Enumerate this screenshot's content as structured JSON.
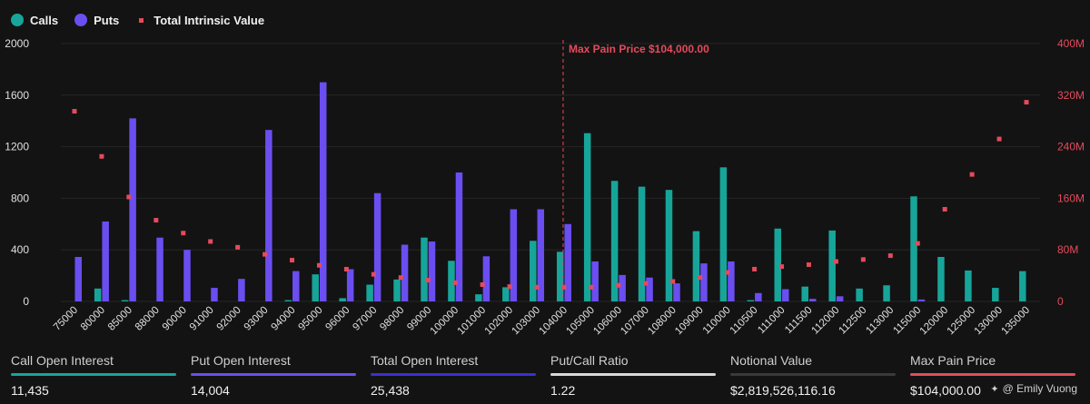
{
  "legend": {
    "calls": "Calls",
    "puts": "Puts",
    "total": "Total Intrinsic Value"
  },
  "colors": {
    "calls": "#17a59a",
    "puts": "#6a4ef0",
    "intrinsic": "#e64a5c",
    "max_pain": "#e64a5c",
    "put_call_bar": "#d8d8d8",
    "total_oi_bar": "#3b2fd6"
  },
  "chart_data": {
    "type": "bar",
    "max_pain_label": "Max Pain Price $104,000.00",
    "max_pain_strike": "104000",
    "categories": [
      "75000",
      "80000",
      "85000",
      "88000",
      "90000",
      "91000",
      "92000",
      "93000",
      "94000",
      "95000",
      "96000",
      "97000",
      "98000",
      "99000",
      "100000",
      "101000",
      "102000",
      "103000",
      "104000",
      "105000",
      "106000",
      "107000",
      "108000",
      "109000",
      "110000",
      "110500",
      "111000",
      "111500",
      "112000",
      "112500",
      "113000",
      "115000",
      "120000",
      "125000",
      "130000",
      "135000"
    ],
    "series": [
      {
        "name": "Calls",
        "values": [
          0,
          100,
          10,
          0,
          0,
          0,
          0,
          0,
          10,
          210,
          25,
          130,
          170,
          495,
          315,
          55,
          110,
          470,
          385,
          1305,
          935,
          890,
          865,
          545,
          1040,
          10,
          565,
          115,
          550,
          100,
          125,
          815,
          345,
          240,
          105,
          235
        ]
      },
      {
        "name": "Puts",
        "values": [
          345,
          620,
          1420,
          495,
          400,
          105,
          175,
          1330,
          235,
          1700,
          250,
          840,
          440,
          465,
          1000,
          350,
          715,
          715,
          600,
          310,
          205,
          185,
          140,
          295,
          310,
          65,
          95,
          20,
          40,
          0,
          0,
          15,
          0,
          0,
          0,
          0
        ]
      },
      {
        "name": "Total Intrinsic Value",
        "values": [
          295000000,
          225000000,
          162000000,
          126000000,
          106000000,
          93000000,
          84000000,
          73000000,
          64000000,
          56000000,
          50000000,
          42000000,
          37000000,
          33000000,
          29000000,
          26000000,
          23000000,
          22000000,
          22000000,
          22000000,
          25000000,
          28000000,
          31000000,
          37000000,
          45000000,
          50000000,
          54000000,
          57000000,
          62000000,
          65000000,
          71000000,
          90000000,
          143000000,
          197000000,
          252000000,
          309000000
        ]
      }
    ],
    "y_left": {
      "ticks": [
        "0",
        "400",
        "800",
        "1200",
        "1600",
        "2000"
      ],
      "range": [
        0,
        2000
      ]
    },
    "y_right": {
      "ticks": [
        "0",
        "80M",
        "160M",
        "240M",
        "320M",
        "400M"
      ],
      "range": [
        0,
        400000000
      ]
    }
  },
  "stats": [
    {
      "label": "Call Open Interest",
      "value": "11,435",
      "color": "#17a59a"
    },
    {
      "label": "Put Open Interest",
      "value": "14,004",
      "color": "#6a4ef0"
    },
    {
      "label": "Total Open Interest",
      "value": "25,438",
      "color": "#3b2fd6"
    },
    {
      "label": "Put/Call Ratio",
      "value": "1.22",
      "color": "#d8d8d8"
    },
    {
      "label": "Notional Value",
      "value": "$2,819,526,116.16",
      "color": "#3a3a3a"
    },
    {
      "label": "Max Pain Price",
      "value": "$104,000.00",
      "color": "#e64a5c"
    }
  ],
  "credit": "@ Emily Vuong"
}
